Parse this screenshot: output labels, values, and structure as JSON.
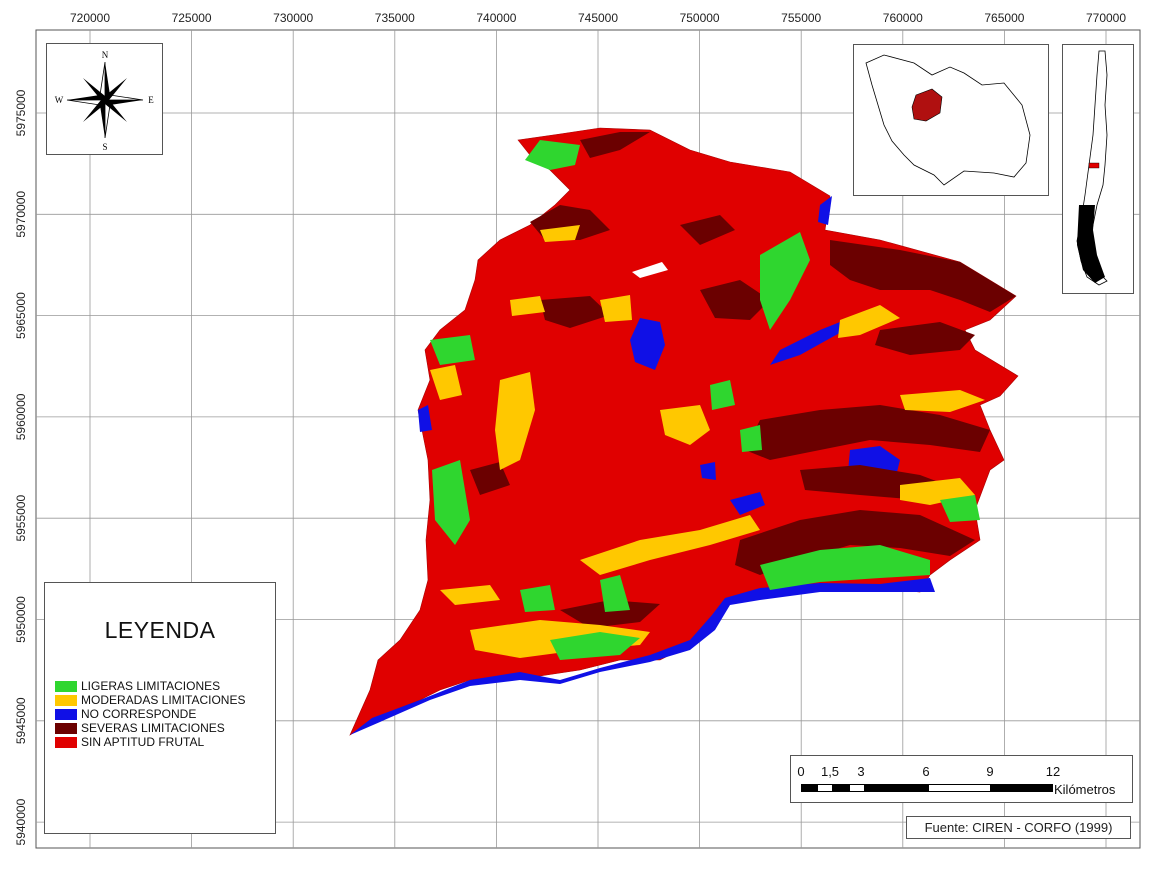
{
  "map": {
    "x_ticks": [
      "720000",
      "725000",
      "730000",
      "735000",
      "740000",
      "745000",
      "750000",
      "755000",
      "760000",
      "765000",
      "770000"
    ],
    "y_ticks": [
      "5975000",
      "5970000",
      "5965000",
      "5960000",
      "5955000",
      "5950000",
      "5945000",
      "5940000"
    ]
  },
  "legend": {
    "title": "LEYENDA",
    "items": [
      {
        "label": "LIGERAS LIMITACIONES",
        "color": "#2fd62f"
      },
      {
        "label": "MODERADAS LIMITACIONES",
        "color": "#ffc800"
      },
      {
        "label": "NO CORRESPONDE",
        "color": "#1010e6"
      },
      {
        "label": "SEVERAS LIMITACIONES",
        "color": "#6b0000"
      },
      {
        "label": "SIN APTITUD FRUTAL",
        "color": "#e00000"
      }
    ]
  },
  "compass": {
    "n": "N",
    "s": "S",
    "e": "E",
    "w": "W"
  },
  "scale": {
    "labels": [
      "0",
      "1,5",
      "3",
      "6",
      "9",
      "12"
    ],
    "unit": "Kilómetros"
  },
  "source": "Fuente: CIREN - CORFO (1999)"
}
